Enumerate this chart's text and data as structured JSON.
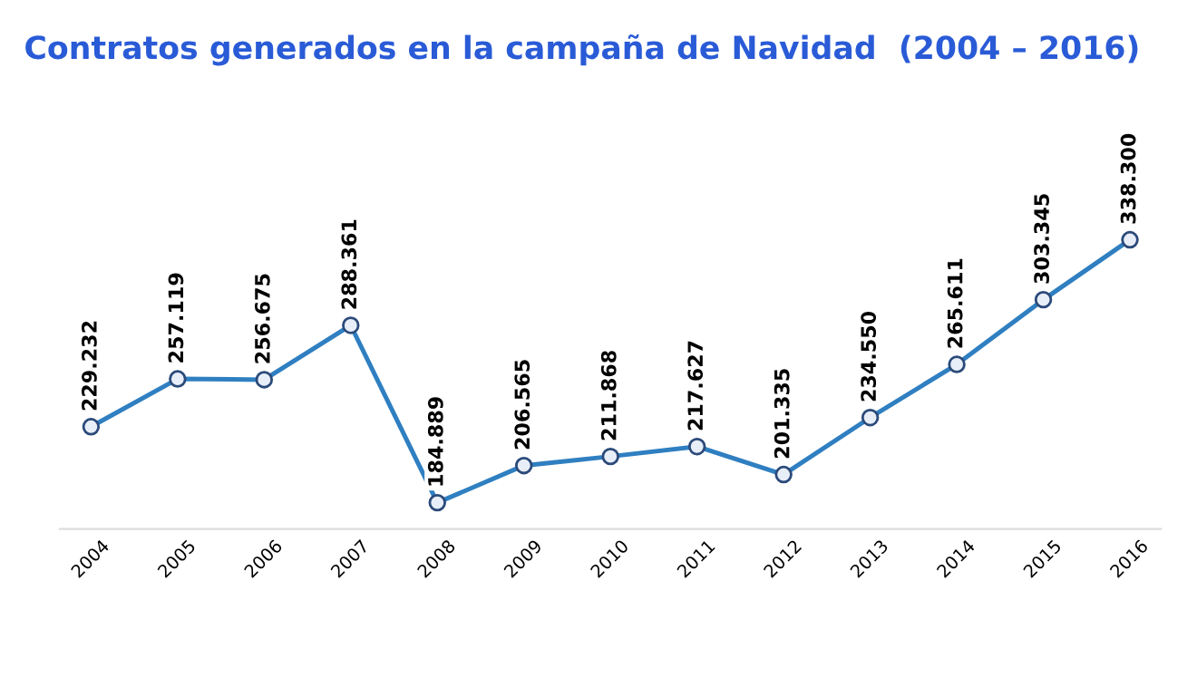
{
  "chart_data": {
    "type": "line",
    "title": "Contratos generados en la campaña de Navidad  (2004 – 2016)",
    "categories": [
      "2004",
      "2005",
      "2006",
      "2007",
      "2008",
      "2009",
      "2010",
      "2011",
      "2012",
      "2013",
      "2014",
      "2015",
      "2016"
    ],
    "series": [
      {
        "color": "#2f7fc1",
        "values": [
          229232,
          257119,
          256675,
          288361,
          184889,
          206565,
          211868,
          217627,
          201335,
          234550,
          265611,
          303345,
          338300
        ],
        "value_labels": [
          "229.232",
          "257.119",
          "256.675",
          "288.361",
          "184.889",
          "206.565",
          "211.868",
          "217.627",
          "201.335",
          "234.550",
          "265.611",
          "303.345",
          "338.300"
        ]
      }
    ],
    "marker": "circle",
    "line_style": "solid",
    "grid": false,
    "legend": false,
    "tick_labels": "x"
  }
}
